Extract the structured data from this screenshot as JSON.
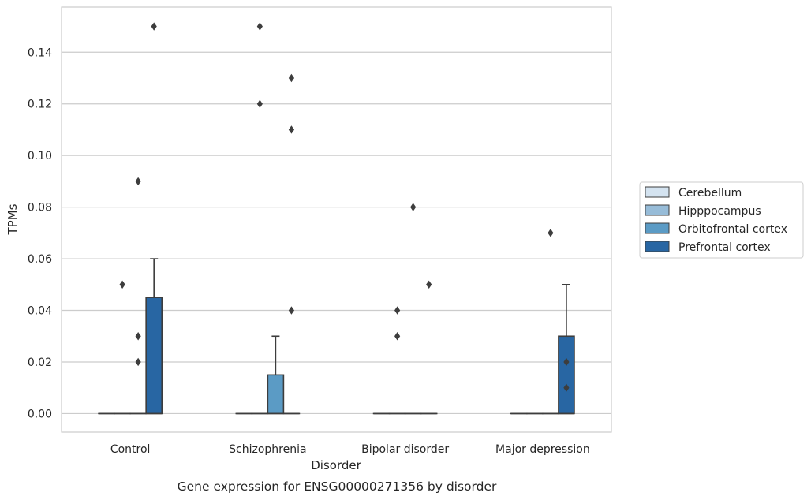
{
  "chart_data": {
    "type": "box",
    "caption": "Gene expression for ENSG00000271356 by disorder",
    "xlabel": "Disorder",
    "ylabel": "TPMs",
    "ylim": [
      -0.0072,
      0.1575
    ],
    "yticks": [
      0.0,
      0.02,
      0.04,
      0.06,
      0.08,
      0.1,
      0.12,
      0.14
    ],
    "ytick_labels": [
      "0.00",
      "0.02",
      "0.04",
      "0.06",
      "0.08",
      "0.10",
      "0.12",
      "0.14"
    ],
    "grid": "horizontal",
    "legend_position": "right",
    "categories": [
      "Control",
      "Schizophrenia",
      "Bipolar disorder",
      "Major depression"
    ],
    "series": [
      {
        "name": "Cerebellum",
        "color": "#d4e3f0",
        "boxes": [
          {
            "q1": 0,
            "median": 0,
            "q3": 0,
            "whisker_low": 0,
            "whisker_high": 0,
            "outliers": []
          },
          {
            "q1": 0,
            "median": 0,
            "q3": 0,
            "whisker_low": 0,
            "whisker_high": 0,
            "outliers": []
          },
          {
            "q1": 0,
            "median": 0,
            "q3": 0,
            "whisker_low": 0,
            "whisker_high": 0,
            "outliers": []
          },
          {
            "q1": 0,
            "median": 0,
            "q3": 0,
            "whisker_low": 0,
            "whisker_high": 0,
            "outliers": []
          }
        ]
      },
      {
        "name": "Hipppocampus",
        "color": "#97bcd8",
        "boxes": [
          {
            "q1": 0,
            "median": 0,
            "q3": 0,
            "whisker_low": 0,
            "whisker_high": 0,
            "outliers": [
              0.05
            ]
          },
          {
            "q1": 0,
            "median": 0,
            "q3": 0,
            "whisker_low": 0,
            "whisker_high": 0,
            "outliers": [
              0.15,
              0.12
            ]
          },
          {
            "q1": 0,
            "median": 0,
            "q3": 0,
            "whisker_low": 0,
            "whisker_high": 0,
            "outliers": [
              0.04,
              0.03
            ]
          },
          {
            "q1": 0,
            "median": 0,
            "q3": 0,
            "whisker_low": 0,
            "whisker_high": 0,
            "outliers": []
          }
        ]
      },
      {
        "name": "Orbitofrontal cortex",
        "color": "#5b9bc5",
        "boxes": [
          {
            "q1": 0,
            "median": 0,
            "q3": 0,
            "whisker_low": 0,
            "whisker_high": 0,
            "outliers": [
              0.09,
              0.03,
              0.02
            ]
          },
          {
            "q1": 0,
            "median": 0,
            "q3": 0.015,
            "whisker_low": 0,
            "whisker_high": 0.03,
            "outliers": []
          },
          {
            "q1": 0,
            "median": 0,
            "q3": 0,
            "whisker_low": 0,
            "whisker_high": 0,
            "outliers": [
              0.08
            ]
          },
          {
            "q1": 0,
            "median": 0,
            "q3": 0,
            "whisker_low": 0,
            "whisker_high": 0,
            "outliers": [
              0.07
            ]
          }
        ]
      },
      {
        "name": "Prefrontal cortex",
        "color": "#2866a3",
        "boxes": [
          {
            "q1": 0,
            "median": 0,
            "q3": 0.045,
            "whisker_low": 0,
            "whisker_high": 0.06,
            "outliers": [
              0.15
            ]
          },
          {
            "q1": 0,
            "median": 0,
            "q3": 0,
            "whisker_low": 0,
            "whisker_high": 0,
            "outliers": [
              0.13,
              0.11,
              0.04
            ]
          },
          {
            "q1": 0,
            "median": 0,
            "q3": 0,
            "whisker_low": 0,
            "whisker_high": 0,
            "outliers": [
              0.05
            ]
          },
          {
            "q1": 0,
            "median": 0,
            "q3": 0.03,
            "whisker_low": 0,
            "whisker_high": 0.05,
            "outliers": [
              0.02,
              0.01
            ]
          }
        ]
      }
    ]
  }
}
